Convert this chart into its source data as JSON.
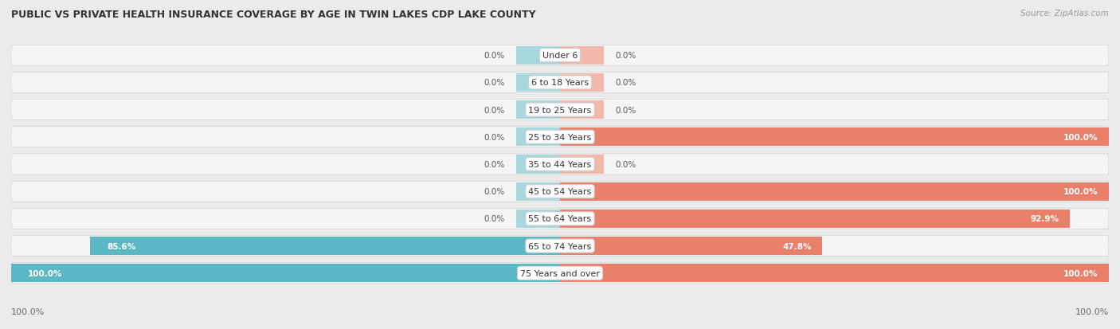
{
  "title": "PUBLIC VS PRIVATE HEALTH INSURANCE COVERAGE BY AGE IN TWIN LAKES CDP LAKE COUNTY",
  "source": "Source: ZipAtlas.com",
  "categories": [
    "Under 6",
    "6 to 18 Years",
    "19 to 25 Years",
    "25 to 34 Years",
    "35 to 44 Years",
    "45 to 54 Years",
    "55 to 64 Years",
    "65 to 74 Years",
    "75 Years and over"
  ],
  "public_values": [
    0.0,
    0.0,
    0.0,
    0.0,
    0.0,
    0.0,
    0.0,
    85.6,
    100.0
  ],
  "private_values": [
    0.0,
    0.0,
    0.0,
    100.0,
    0.0,
    100.0,
    92.9,
    47.8,
    100.0
  ],
  "public_color": "#5bb8c4",
  "private_color": "#e8806a",
  "public_color_light": "#a8d8df",
  "private_color_light": "#f2b8ac",
  "bg_color": "#ebebeb",
  "row_bg_color": "#f5f5f5",
  "title_fontsize": 9,
  "source_fontsize": 7.5,
  "label_fontsize": 8,
  "value_fontsize": 7.5,
  "legend_fontsize": 8,
  "axis_label_fontsize": 8,
  "min_bar_for_light": 5,
  "min_bar_for_stub": 2
}
